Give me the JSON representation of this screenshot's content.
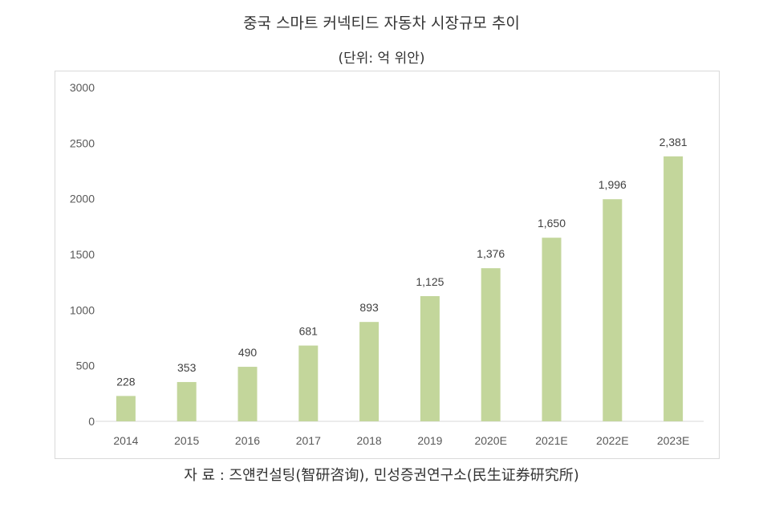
{
  "header": {
    "title": "중국 스마트 커넥티드 자동차 시장규모 추이",
    "subtitle": "(단위: 억 위안)"
  },
  "footer": {
    "source": "자 료 : 즈얜컨설팅(智研咨询), 민성증권연구소(民生证券研究所)"
  },
  "chart_data": {
    "type": "bar",
    "categories": [
      "2014",
      "2015",
      "2016",
      "2017",
      "2018",
      "2019",
      "2020E",
      "2021E",
      "2022E",
      "2023E"
    ],
    "values": [
      228,
      353,
      490,
      681,
      893,
      1125,
      1376,
      1650,
      1996,
      2381
    ],
    "data_labels": [
      "228",
      "353",
      "490",
      "681",
      "893",
      "1,125",
      "1,376",
      "1,650",
      "1,996",
      "2,381"
    ],
    "title": "중국 스마트 커넥티드 자동차 시장규모 추이",
    "subtitle": "(단위: 억 위안)",
    "xlabel": "",
    "ylabel": "",
    "ylim": [
      0,
      3000
    ],
    "yticks": [
      0,
      500,
      1000,
      1500,
      2000,
      2500,
      3000
    ],
    "grid": false,
    "legend": "none",
    "bar_color": "#c3d69b"
  }
}
